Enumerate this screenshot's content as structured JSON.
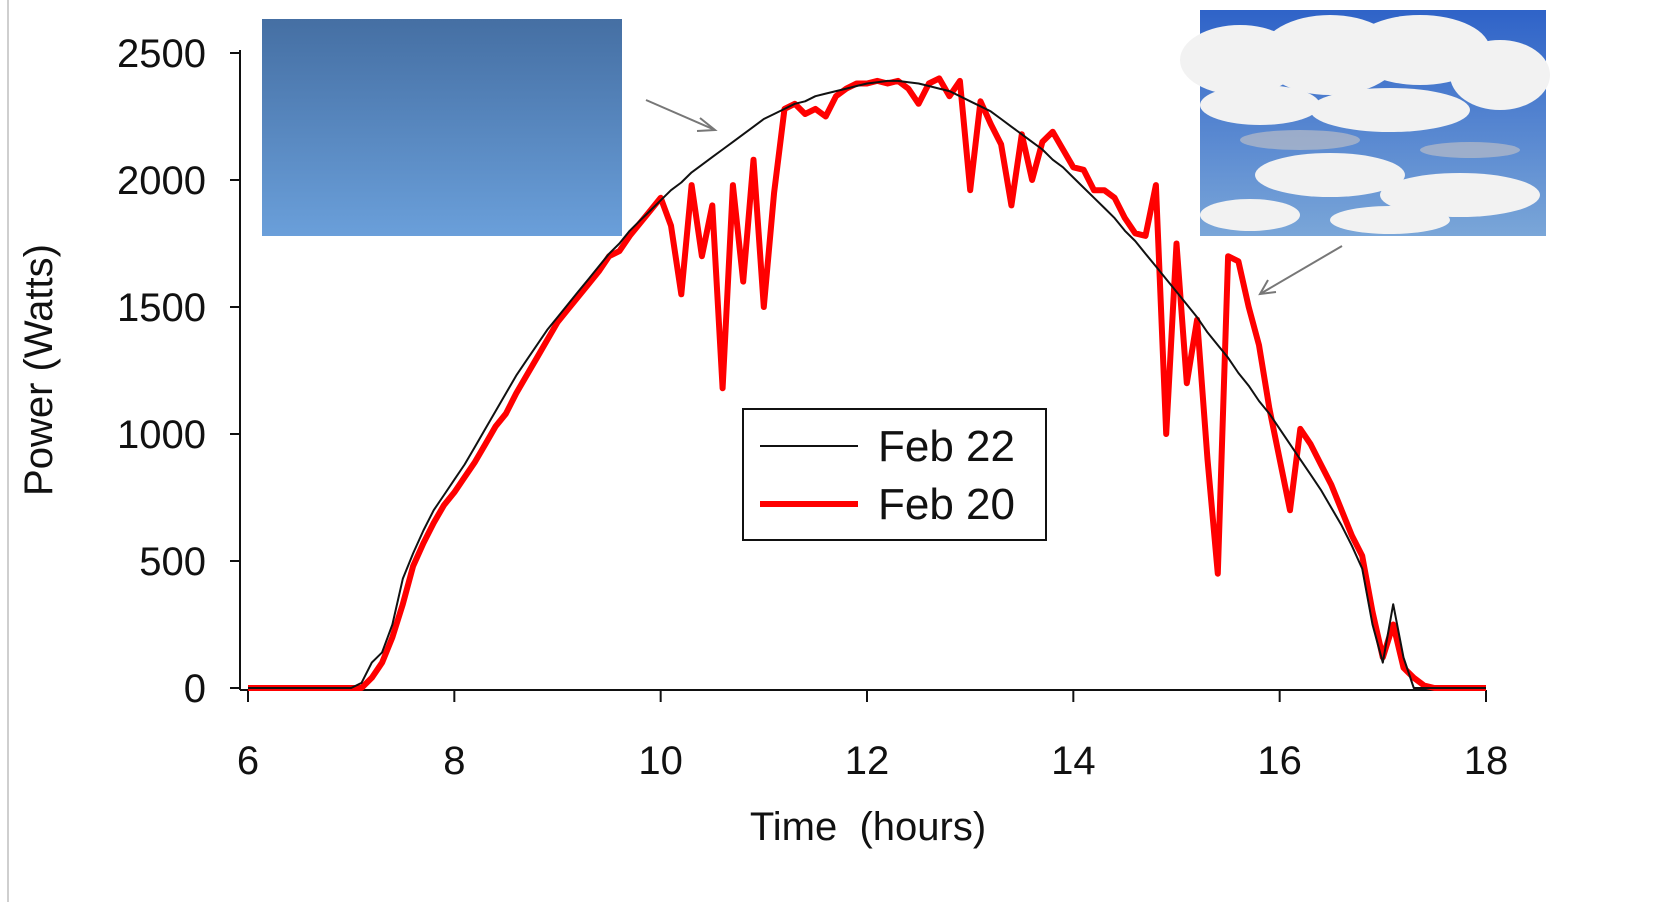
{
  "chart_data": {
    "type": "line",
    "x_label": "Time  (hours)",
    "y_label": "Power (Watts)",
    "xlim": [
      6,
      18
    ],
    "ylim": [
      0,
      2500
    ],
    "xticks": [
      6,
      8,
      10,
      12,
      14,
      16,
      18
    ],
    "yticks": [
      0,
      500,
      1000,
      1500,
      2000,
      2500
    ],
    "legend": "center",
    "x": [
      6,
      6.1,
      6.2,
      6.3,
      6.4,
      6.5,
      6.6,
      6.7,
      6.8,
      6.9,
      7,
      7.1,
      7.2,
      7.3,
      7.4,
      7.5,
      7.6,
      7.7,
      7.8,
      7.9,
      8,
      8.1,
      8.2,
      8.3,
      8.4,
      8.5,
      8.6,
      8.7,
      8.8,
      8.9,
      9,
      9.1,
      9.2,
      9.3,
      9.4,
      9.5,
      9.6,
      9.7,
      9.8,
      9.9,
      10,
      10.1,
      10.2,
      10.3,
      10.4,
      10.5,
      10.6,
      10.7,
      10.8,
      10.9,
      11,
      11.1,
      11.2,
      11.3,
      11.4,
      11.5,
      11.6,
      11.7,
      11.8,
      11.9,
      12,
      12.1,
      12.2,
      12.3,
      12.4,
      12.5,
      12.6,
      12.7,
      12.8,
      12.9,
      13,
      13.1,
      13.2,
      13.3,
      13.4,
      13.5,
      13.6,
      13.7,
      13.8,
      13.9,
      14,
      14.1,
      14.2,
      14.3,
      14.4,
      14.5,
      14.6,
      14.7,
      14.8,
      14.9,
      15,
      15.1,
      15.2,
      15.3,
      15.4,
      15.5,
      15.6,
      15.7,
      15.8,
      15.9,
      16,
      16.1,
      16.2,
      16.3,
      16.4,
      16.5,
      16.6,
      16.7,
      16.8,
      16.9,
      17,
      17.1,
      17.2,
      17.3,
      17.4,
      17.5,
      17.6,
      17.7,
      17.8,
      17.9,
      18
    ],
    "series": [
      {
        "name": "Feb 22",
        "color": "#111111",
        "width": 2,
        "values": [
          0,
          0,
          0,
          0,
          0,
          0,
          0,
          0,
          0,
          0,
          0,
          20,
          100,
          140,
          250,
          430,
          530,
          620,
          700,
          760,
          820,
          880,
          950,
          1020,
          1090,
          1160,
          1230,
          1290,
          1350,
          1410,
          1460,
          1510,
          1560,
          1610,
          1660,
          1710,
          1750,
          1800,
          1840,
          1880,
          1920,
          1960,
          1990,
          2030,
          2060,
          2090,
          2120,
          2150,
          2180,
          2210,
          2240,
          2260,
          2280,
          2300,
          2310,
          2330,
          2340,
          2350,
          2360,
          2370,
          2380,
          2385,
          2390,
          2390,
          2385,
          2380,
          2370,
          2360,
          2350,
          2330,
          2310,
          2290,
          2270,
          2240,
          2210,
          2180,
          2150,
          2120,
          2080,
          2050,
          2010,
          1970,
          1930,
          1890,
          1850,
          1800,
          1760,
          1710,
          1660,
          1610,
          1560,
          1510,
          1460,
          1400,
          1350,
          1300,
          1240,
          1190,
          1130,
          1080,
          1020,
          960,
          900,
          840,
          780,
          710,
          640,
          560,
          470,
          250,
          100,
          330,
          120,
          0,
          0,
          0,
          0,
          0,
          0,
          0,
          0
        ]
      },
      {
        "name": "Feb 20",
        "color": "#ff0000",
        "width": 6,
        "values": [
          0,
          0,
          0,
          0,
          0,
          0,
          0,
          0,
          0,
          0,
          0,
          0,
          40,
          100,
          200,
          330,
          480,
          570,
          650,
          720,
          770,
          830,
          890,
          960,
          1030,
          1080,
          1160,
          1230,
          1300,
          1370,
          1440,
          1490,
          1540,
          1590,
          1640,
          1700,
          1720,
          1780,
          1830,
          1880,
          1930,
          1820,
          1550,
          1980,
          1700,
          1900,
          1180,
          1980,
          1600,
          2080,
          1500,
          1950,
          2280,
          2300,
          2260,
          2280,
          2250,
          2330,
          2360,
          2380,
          2380,
          2390,
          2380,
          2390,
          2360,
          2300,
          2380,
          2400,
          2330,
          2390,
          1960,
          2310,
          2220,
          2140,
          1900,
          2180,
          2000,
          2150,
          2190,
          2120,
          2050,
          2040,
          1960,
          1960,
          1930,
          1850,
          1790,
          1780,
          1980,
          1000,
          1750,
          1200,
          1450,
          900,
          450,
          1700,
          1680,
          1500,
          1350,
          1100,
          900,
          700,
          1020,
          960,
          880,
          800,
          700,
          600,
          520,
          300,
          120,
          250,
          80,
          40,
          10,
          0,
          0,
          0,
          0,
          0,
          0
        ]
      }
    ]
  }
}
